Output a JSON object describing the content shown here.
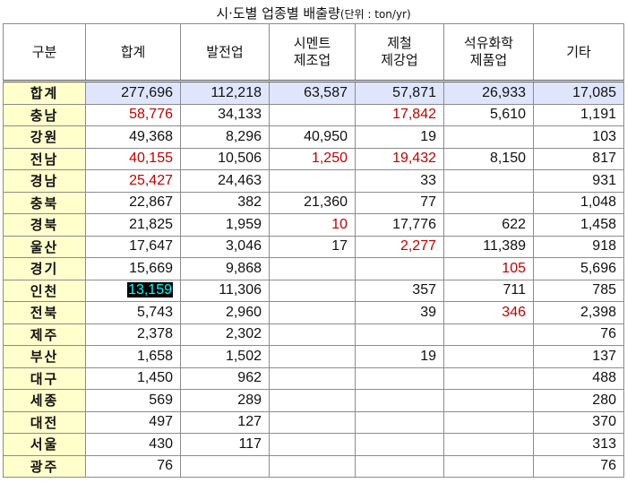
{
  "title": {
    "main": "시·도별 업종별 배출량",
    "unit": "(단위 : ton/yr)"
  },
  "headers": [
    "구분",
    "합계",
    "발전업",
    "시멘트\n제조업",
    "제철\n제강업",
    "석유화학\n제품업",
    "기타"
  ],
  "rows": [
    {
      "region": "합계",
      "values": [
        "277,696",
        "112,218",
        "63,587",
        "57,871",
        "26,933",
        "17,085"
      ]
    },
    {
      "region": "충남",
      "values": [
        "58,776",
        "34,133",
        "",
        "17,842",
        "5,610",
        "1,191"
      ]
    },
    {
      "region": "강원",
      "values": [
        "49,368",
        "8,296",
        "40,950",
        "19",
        "",
        "103"
      ]
    },
    {
      "region": "전남",
      "values": [
        "40,155",
        "10,506",
        "1,250",
        "19,432",
        "8,150",
        "817"
      ]
    },
    {
      "region": "경남",
      "values": [
        "25,427",
        "24,463",
        "",
        "33",
        "",
        "931"
      ]
    },
    {
      "region": "충북",
      "values": [
        "22,867",
        "382",
        "21,360",
        "77",
        "",
        "1,048"
      ]
    },
    {
      "region": "경북",
      "values": [
        "21,825",
        "1,959",
        "10",
        "17,776",
        "622",
        "1,458"
      ]
    },
    {
      "region": "울산",
      "values": [
        "17,647",
        "3,046",
        "17",
        "2,277",
        "11,389",
        "918"
      ]
    },
    {
      "region": "경기",
      "values": [
        "15,669",
        "9,868",
        "",
        "",
        "105",
        "5,696"
      ]
    },
    {
      "region": "인천",
      "values": [
        "13,159",
        "11,306",
        "",
        "357",
        "711",
        "785"
      ]
    },
    {
      "region": "전북",
      "values": [
        "5,743",
        "2,960",
        "",
        "39",
        "346",
        "2,398"
      ]
    },
    {
      "region": "제주",
      "values": [
        "2,378",
        "2,302",
        "",
        "",
        "",
        "76"
      ]
    },
    {
      "region": "부산",
      "values": [
        "1,658",
        "1,502",
        "",
        "19",
        "",
        "137"
      ]
    },
    {
      "region": "대구",
      "values": [
        "1,450",
        "962",
        "",
        "",
        "",
        "488"
      ]
    },
    {
      "region": "세종",
      "values": [
        "569",
        "289",
        "",
        "",
        "",
        "280"
      ]
    },
    {
      "region": "대전",
      "values": [
        "497",
        "127",
        "",
        "",
        "",
        "370"
      ]
    },
    {
      "region": "서울",
      "values": [
        "430",
        "117",
        "",
        "",
        "",
        "313"
      ]
    },
    {
      "region": "광주",
      "values": [
        "76",
        "",
        "",
        "",
        "",
        "76"
      ]
    }
  ],
  "highlights": {
    "red_color": "#c00000",
    "red_cells": [
      [
        1,
        1
      ],
      [
        1,
        3
      ],
      [
        1,
        4
      ],
      [
        3,
        1
      ],
      [
        3,
        3
      ],
      [
        3,
        4
      ],
      [
        4,
        1
      ],
      [
        6,
        3
      ],
      [
        7,
        4
      ],
      [
        8,
        5
      ],
      [
        10,
        5
      ]
    ],
    "selected_cell": [
      9,
      1
    ],
    "selected_bg": "#000000",
    "selected_fg": "#00ffff",
    "total_row_bg": "#dfe6fb",
    "region_bg": "#ffffcc"
  }
}
